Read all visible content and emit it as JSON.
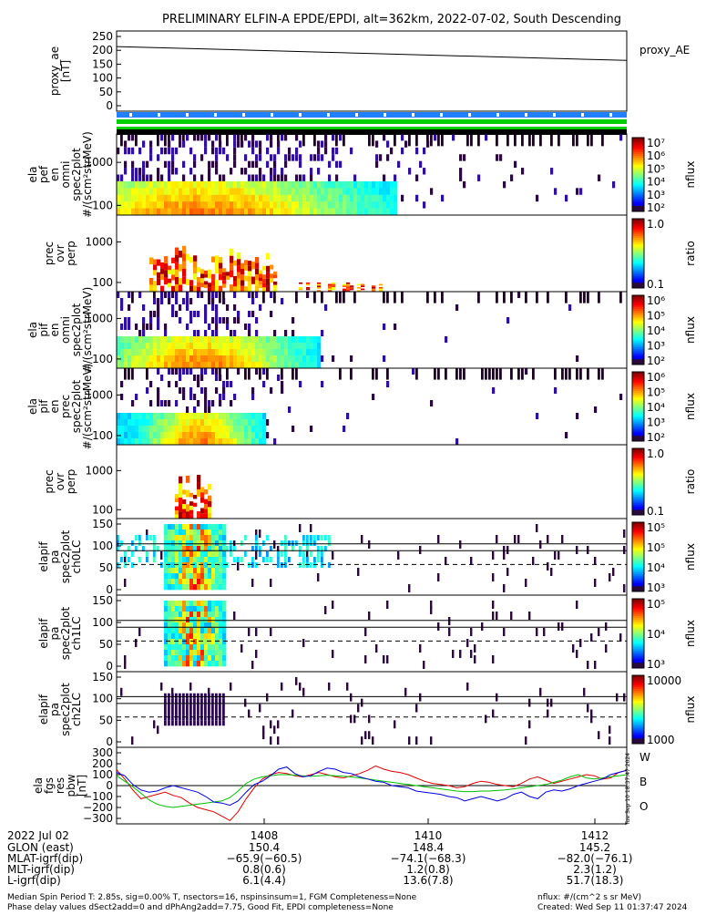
{
  "title": "PRELIMINARY ELFIN-A EPDE/EPDI, alt=362km, 2022-07-02, South Descending",
  "panels": [
    {
      "ylabel": [
        "ela",
        "fgs",
        "res",
        "pbw",
        "[nT]"
      ],
      "ticks": [
        "300",
        "200",
        "100",
        "0",
        "−100",
        "−200",
        "−300"
      ]
    },
    {
      "ylabel": [
        "elapif",
        "pa",
        "spec2plot",
        "ch2LC"
      ],
      "ticks": [
        "150",
        "100",
        "50",
        "0"
      ],
      "cb_label": "nflux",
      "cb_ticks": [
        "10000",
        "1000"
      ]
    },
    {
      "ylabel": [
        "elapif",
        "pa",
        "spec2plot",
        "ch1LC"
      ],
      "ticks": [
        "150",
        "100",
        "50",
        "0"
      ],
      "cb_label": "nflux",
      "cb_ticks": [
        "10⁵",
        "10⁴",
        "10³"
      ]
    },
    {
      "ylabel": [
        "elapif",
        "pa",
        "spec2plot",
        "ch0LC"
      ],
      "ticks": [
        "150",
        "100",
        "50",
        "0"
      ],
      "cb_label": "nflux",
      "cb_ticks": [
        "10⁵",
        "10⁵",
        "10⁴",
        "10³"
      ]
    },
    {
      "ylabel": [
        "prec",
        "ovr",
        "perp"
      ],
      "ticks": [
        "1000",
        "100"
      ],
      "cb_label": "ratio",
      "cb_ticks": [
        "1.0",
        "0.1"
      ]
    },
    {
      "ylabel": [
        "ela",
        "pif",
        "en",
        "prec",
        "spec2plot",
        "#/(scm²strMeV)"
      ],
      "ticks": [
        "1000",
        "100"
      ],
      "cb_label": "nflux",
      "cb_ticks": [
        "10⁶",
        "10⁵",
        "10⁴",
        "10³",
        "10²"
      ]
    },
    {
      "ylabel": [
        "ela",
        "pif",
        "en",
        "omni",
        "spec2plot",
        "#/(scm²strMeV)"
      ],
      "ticks": [
        "1000",
        "100"
      ],
      "cb_label": "nflux",
      "cb_ticks": [
        "10⁶",
        "10⁵",
        "10⁴",
        "10³",
        "10²"
      ]
    },
    {
      "ylabel": [
        "prec",
        "ovr",
        "perp"
      ],
      "ticks": [
        "1000",
        "100"
      ],
      "cb_label": "ratio",
      "cb_ticks": [
        "1.0",
        "0.1"
      ]
    },
    {
      "ylabel": [
        "ela",
        "pef",
        "en",
        "omni",
        "spec2plot",
        "#/(scm²strMeV)"
      ],
      "ticks": [
        "1000",
        "100"
      ],
      "cb_label": "nflux",
      "cb_ticks": [
        "10⁷",
        "10⁶",
        "10⁵",
        "10⁴",
        "10³",
        "10²"
      ]
    },
    {
      "ylabel": [
        "proxy_ae",
        "[nT]"
      ],
      "ticks": [
        "250",
        "200",
        "150",
        "100",
        "50",
        "0"
      ],
      "legend": "proxy_AE"
    }
  ],
  "fgs_legend": [
    "W",
    "B",
    "O"
  ],
  "colors": {
    "W": "#e00000",
    "B": "#00c000",
    "O": "#0000e0",
    "blue_bar": "#2080ff",
    "green_bar": "#00d000"
  },
  "side_stamp": "Tue Sep 10 18:37:47 2024",
  "table": {
    "rows": [
      {
        "name": "2022 Jul 02",
        "v1": "1408",
        "v2": "1410",
        "v3": "1412"
      },
      {
        "name": "GLON (east)",
        "v1": "150.4",
        "v2": "148.4",
        "v3": "145.2"
      },
      {
        "name": "MLAT-igrf(dip)",
        "v1": "−65.9(−60.5)",
        "v2": "−74.1(−68.3)",
        "v3": "−82.0(−76.1)"
      },
      {
        "name": "MLT-igrf(dip)",
        "v1": "0.8(0.6)",
        "v2": "1.2(0.8)",
        "v3": "2.3(1.2)"
      },
      {
        "name": "L-igrf(dip)",
        "v1": "6.1(4.4)",
        "v2": "13.6(7.8)",
        "v3": "51.7(18.3)"
      }
    ]
  },
  "footer": {
    "line1_left": "Median Spin Period T: 2.85s, sig=0.00% T, nsectors=16, nspinsinsum=1, FGM Completeness=None",
    "line2_left": "Phase delay values dSect2add=0 and dPhAng2add=7.75, Good Fit, EPDI completeness=None",
    "line1_right": "nflux: #/(cm^2 s sr MeV)",
    "line2_right": "Created: Wed Sep 11 01:37:47 2024"
  },
  "chart_data": {
    "type": "multi-panel time series / spectrogram stack",
    "time_axis_labels": [
      "1408",
      "1410",
      "1412"
    ],
    "proxy_ae": {
      "y_range": [
        0,
        260
      ],
      "start": 222,
      "end": 170
    },
    "fgs_res_pbw": {
      "y_range": [
        -300,
        300
      ],
      "series": [
        {
          "name": "W",
          "color": "#e00000",
          "values": [
            145,
            60,
            -40,
            -120,
            -100,
            -80,
            -60,
            -90,
            -110,
            -160,
            -200,
            -220,
            -240,
            -280,
            -320,
            -240,
            -120,
            -20,
            60,
            100,
            120,
            110,
            90,
            80,
            100,
            120,
            100,
            80,
            70,
            90,
            110,
            140,
            180,
            150,
            130,
            120,
            100,
            70,
            40,
            20,
            10,
            0,
            -20,
            -10,
            20,
            40,
            30,
            10,
            0,
            -10,
            20,
            60,
            80,
            50,
            20,
            40,
            60,
            80,
            100,
            90,
            60,
            70,
            120,
            140
          ]
        },
        {
          "name": "B",
          "color": "#00c000",
          "values": [
            90,
            40,
            -10,
            -70,
            -130,
            -170,
            -190,
            -200,
            -190,
            -180,
            -170,
            -160,
            -150,
            -140,
            -110,
            -50,
            20,
            60,
            80,
            90,
            100,
            100,
            95,
            90,
            85,
            90,
            95,
            90,
            85,
            80,
            70,
            60,
            50,
            40,
            30,
            20,
            10,
            0,
            -10,
            -20,
            -30,
            -40,
            -50,
            -55,
            -55,
            -50,
            -50,
            -45,
            -40,
            -30,
            -20,
            -10,
            0,
            10,
            30,
            50,
            80,
            100,
            70,
            60,
            70,
            80,
            90,
            100
          ]
        },
        {
          "name": "O",
          "color": "#0000e0",
          "values": [
            120,
            90,
            10,
            -40,
            -60,
            -50,
            -20,
            0,
            -20,
            -40,
            -60,
            -100,
            -150,
            -160,
            -180,
            -140,
            -60,
            10,
            40,
            90,
            150,
            170,
            110,
            80,
            90,
            130,
            160,
            150,
            120,
            110,
            80,
            60,
            40,
            30,
            0,
            -10,
            -20,
            -50,
            -60,
            -70,
            -80,
            -100,
            -110,
            -140,
            -120,
            -100,
            -120,
            -140,
            -120,
            -80,
            -60,
            -100,
            -120,
            -60,
            -40,
            -50,
            -30,
            0,
            20,
            40,
            60,
            100,
            120,
            140
          ]
        }
      ]
    }
  }
}
